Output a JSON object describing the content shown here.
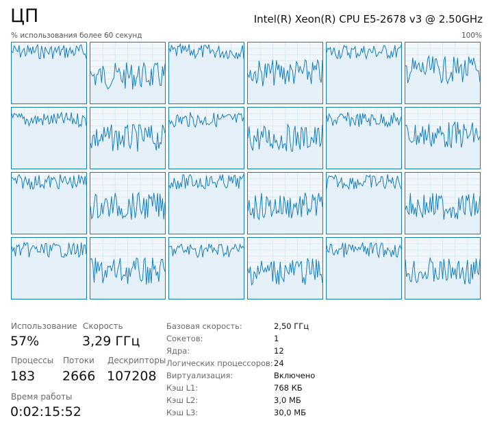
{
  "header": {
    "title": "ЦП",
    "cpu_name": "Intel(R) Xeon(R) CPU E5-2678 v3 @ 2.50GHz",
    "axis_label": "% использования более 60 секунд",
    "axis_max": "100%"
  },
  "graph": {
    "line_color": "#117dbb",
    "fill_color": "#f1f6fa",
    "grid_color": "#d9eaf4",
    "logical_processors": 24
  },
  "stats": {
    "usage_label": "Использование",
    "usage_value": "57%",
    "speed_label": "Скорость",
    "speed_value": "3,29 ГГц",
    "processes_label": "Процессы",
    "processes_value": "183",
    "threads_label": "Потоки",
    "threads_value": "2666",
    "handles_label": "Дескрипторы",
    "handles_value": "107208",
    "uptime_label": "Время работы",
    "uptime_value": "0:02:15:52"
  },
  "specs": [
    {
      "label": "Базовая скорость:",
      "value": "2,50 ГГц"
    },
    {
      "label": "Сокетов:",
      "value": "1"
    },
    {
      "label": "Ядра:",
      "value": "12"
    },
    {
      "label": "Логических процессоров:",
      "value": "24"
    },
    {
      "label": "Виртуализация:",
      "value": "Включено"
    },
    {
      "label": "Кэш L1:",
      "value": "768 КБ"
    },
    {
      "label": "Кэш L2:",
      "value": "3,0 МБ"
    },
    {
      "label": "Кэш L3:",
      "value": "30,0 МБ"
    }
  ]
}
